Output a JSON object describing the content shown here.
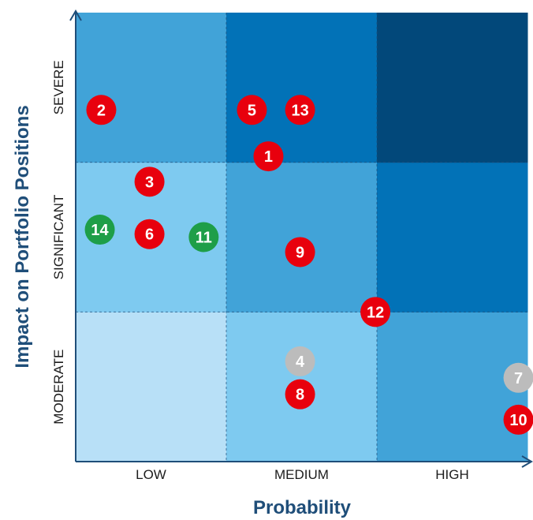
{
  "chart_data": {
    "type": "scatter",
    "xlabel": "Probability",
    "ylabel": "Impact on Portfolio Positions",
    "x_categories": [
      "LOW",
      "MEDIUM",
      "HIGH"
    ],
    "y_categories": [
      "MODERATE",
      "SIGNIFICANT",
      "SEVERE"
    ],
    "xlim": [
      0,
      3
    ],
    "ylim": [
      0,
      3
    ],
    "grid": true,
    "cell_colors": [
      [
        "#b8e0f7",
        "#7ecaf0",
        "#41a3d8"
      ],
      [
        "#7ecaf0",
        "#41a3d8",
        "#0272b7"
      ],
      [
        "#41a3d8",
        "#0272b7",
        "#02487a"
      ]
    ],
    "status_colors": {
      "red": "#e8000d",
      "green": "#1e9e48",
      "grey": "#bcbcbc"
    },
    "points": [
      {
        "label": "1",
        "x": 1.28,
        "y": 2.04,
        "status": "red"
      },
      {
        "label": "2",
        "x": 0.17,
        "y": 2.35,
        "status": "red"
      },
      {
        "label": "3",
        "x": 0.49,
        "y": 1.87,
        "status": "red"
      },
      {
        "label": "4",
        "x": 1.49,
        "y": 0.67,
        "status": "grey"
      },
      {
        "label": "5",
        "x": 1.17,
        "y": 2.35,
        "status": "red"
      },
      {
        "label": "6",
        "x": 0.49,
        "y": 1.52,
        "status": "red"
      },
      {
        "label": "7",
        "x": 2.94,
        "y": 0.56,
        "status": "grey"
      },
      {
        "label": "8",
        "x": 1.49,
        "y": 0.45,
        "status": "red"
      },
      {
        "label": "9",
        "x": 1.49,
        "y": 1.4,
        "status": "red"
      },
      {
        "label": "10",
        "x": 2.94,
        "y": 0.28,
        "status": "red"
      },
      {
        "label": "11",
        "x": 0.85,
        "y": 1.5,
        "status": "green"
      },
      {
        "label": "12",
        "x": 1.99,
        "y": 1.0,
        "status": "red"
      },
      {
        "label": "13",
        "x": 1.49,
        "y": 2.35,
        "status": "red"
      },
      {
        "label": "14",
        "x": 0.16,
        "y": 1.55,
        "status": "green"
      }
    ]
  }
}
